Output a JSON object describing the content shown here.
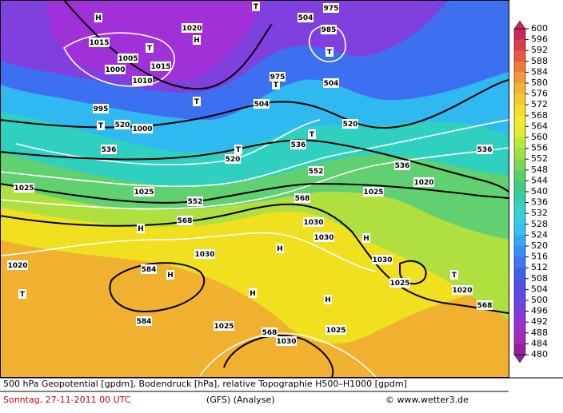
{
  "map_labels": [
    "H",
    "T",
    "504",
    "975",
    "985",
    "H",
    "T",
    "1020",
    "1015",
    "1005",
    "1000",
    "1010",
    "1015",
    "T",
    "504",
    "T",
    "975",
    "T",
    "504",
    "995",
    "T",
    "520",
    "1000",
    "520",
    "T",
    "536",
    "536",
    "520",
    "T",
    "552",
    "536",
    "536",
    "1025",
    "1025",
    "552",
    "1025",
    "1020",
    "568",
    "H",
    "568",
    "1030",
    "1030",
    "H",
    "H",
    "1030",
    "584",
    "H",
    "T",
    "1020",
    "1030",
    "1025",
    "T",
    "1020",
    "H",
    "H",
    "568",
    "584",
    "568",
    "1025",
    "1025",
    "1030"
  ],
  "colorbar": {
    "ticks": [
      600,
      596,
      592,
      588,
      584,
      580,
      576,
      572,
      568,
      564,
      560,
      556,
      552,
      548,
      544,
      540,
      536,
      532,
      528,
      524,
      520,
      516,
      512,
      508,
      504,
      500,
      496,
      492,
      488,
      484,
      480
    ],
    "colors": [
      "#c8285a",
      "#dc3c46",
      "#e85a3c",
      "#ee7a3a",
      "#f09a38",
      "#f2b436",
      "#f4c834",
      "#f6dc30",
      "#f2ec28",
      "#dcee2c",
      "#bce838",
      "#9ce044",
      "#7cd850",
      "#5cd066",
      "#40cc82",
      "#34d0a4",
      "#34d4c4",
      "#34d0e0",
      "#34c0f0",
      "#34a8f4",
      "#3890f4",
      "#3c78f0",
      "#4060ec",
      "#5050e8",
      "#6248e4",
      "#7440e0",
      "#8a38d8",
      "#9c30cc",
      "#a828b8",
      "#9420a0"
    ]
  },
  "footer": {
    "line1": "500 hPa Geopotential [gpdm], Bodendruck [hPa], relative Topographie H500–H1000 [gpdm]",
    "date": "Sonntag, 27-11-2011  00 UTC",
    "model": "(GFS)  (Analyse)",
    "credit": "© www.wetter3.de"
  }
}
